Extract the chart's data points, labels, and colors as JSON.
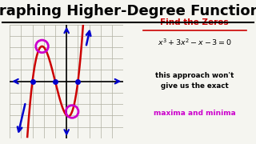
{
  "title": "Graphing Higher-Degree Functions",
  "title_fontsize": 13,
  "background_color": "#f5f5f0",
  "graph_bg": "#e8e8d8",
  "grid_color": "#b0b0a0",
  "curve_color": "#cc0000",
  "arrow_color": "#0000cc",
  "zero_dot_color": "#0000cc",
  "circle_color": "#cc00cc",
  "find_zeros_color": "#cc0000",
  "equation_color": "#000000",
  "maxima_color": "#cc00cc",
  "text_black": "#000000",
  "xlim": [
    -5,
    5
  ],
  "ylim": [
    -5,
    5
  ],
  "zeros": [
    -3,
    -1,
    1
  ],
  "local_max_x": -2.155,
  "local_min_x": 0.488
}
